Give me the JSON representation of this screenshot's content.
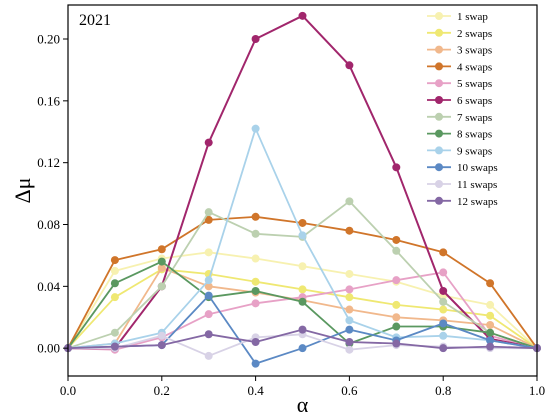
{
  "chart_data": {
    "type": "line",
    "annotation": "2021",
    "xlabel": "α",
    "ylabel": "Δμ",
    "xlim": [
      0.0,
      1.0
    ],
    "ylim": [
      -0.018,
      0.222
    ],
    "x_ticks": [
      "0.0",
      "0.2",
      "0.4",
      "0.6",
      "0.8",
      "1.0"
    ],
    "y_ticks": [
      "0.00",
      "0.04",
      "0.08",
      "0.12",
      "0.16",
      "0.20"
    ],
    "x_tick_values": [
      0.0,
      0.2,
      0.4,
      0.6,
      0.8,
      1.0
    ],
    "y_tick_values": [
      0.0,
      0.04,
      0.08,
      0.12,
      0.16,
      0.2
    ],
    "legend_position": "top-right",
    "grid": false,
    "x": [
      0.0,
      0.1,
      0.2,
      0.3,
      0.4,
      0.5,
      0.6,
      0.7,
      0.8,
      0.9,
      1.0
    ],
    "series": [
      {
        "name": "1 swap",
        "color": "#f7f1b0",
        "values": [
          0.0,
          0.05,
          0.058,
          0.062,
          0.058,
          0.053,
          0.048,
          0.043,
          0.034,
          0.028,
          0.0
        ]
      },
      {
        "name": "2 swaps",
        "color": "#efe872",
        "values": [
          0.0,
          0.033,
          0.051,
          0.048,
          0.043,
          0.038,
          0.033,
          0.028,
          0.025,
          0.021,
          0.0
        ]
      },
      {
        "name": "3 swaps",
        "color": "#f1b88c",
        "values": [
          0.0,
          0.003,
          0.052,
          0.04,
          0.036,
          0.031,
          0.025,
          0.02,
          0.018,
          0.015,
          0.0
        ]
      },
      {
        "name": "4 swaps",
        "color": "#d0752a",
        "values": [
          0.0,
          0.057,
          0.064,
          0.083,
          0.085,
          0.081,
          0.076,
          0.07,
          0.062,
          0.042,
          0.0
        ]
      },
      {
        "name": "5 swaps",
        "color": "#e7a1c6",
        "values": [
          0.0,
          -0.001,
          0.007,
          0.022,
          0.029,
          0.033,
          0.038,
          0.044,
          0.049,
          0.008,
          0.0
        ]
      },
      {
        "name": "6 swaps",
        "color": "#a1266c",
        "values": [
          0.0,
          0.0,
          0.04,
          0.133,
          0.2,
          0.215,
          0.183,
          0.117,
          0.037,
          0.006,
          0.0
        ]
      },
      {
        "name": "7 swaps",
        "color": "#bcd0b0",
        "values": [
          0.0,
          0.01,
          0.04,
          0.088,
          0.074,
          0.072,
          0.095,
          0.063,
          0.03,
          0.01,
          0.0
        ]
      },
      {
        "name": "8 swaps",
        "color": "#5a9860",
        "values": [
          0.0,
          0.042,
          0.056,
          0.033,
          0.037,
          0.03,
          0.003,
          0.014,
          0.014,
          0.01,
          0.0
        ]
      },
      {
        "name": "9 swaps",
        "color": "#a9d2ea",
        "values": [
          0.0,
          0.003,
          0.01,
          0.044,
          0.142,
          0.073,
          0.018,
          0.007,
          0.008,
          0.005,
          0.0
        ]
      },
      {
        "name": "10 swaps",
        "color": "#5b89c4",
        "values": [
          0.0,
          0.001,
          0.002,
          0.034,
          -0.01,
          0.0,
          0.012,
          0.005,
          0.016,
          0.005,
          0.0
        ]
      },
      {
        "name": "11 swaps",
        "color": "#d8d2e6",
        "values": [
          0.0,
          0.0,
          0.008,
          -0.005,
          0.007,
          0.009,
          -0.001,
          0.002,
          0.001,
          0.0,
          0.0
        ]
      },
      {
        "name": "12 swaps",
        "color": "#8468a4",
        "values": [
          0.0,
          0.001,
          0.002,
          0.009,
          0.004,
          0.012,
          0.004,
          0.003,
          0.0,
          0.001,
          0.0
        ]
      }
    ]
  }
}
